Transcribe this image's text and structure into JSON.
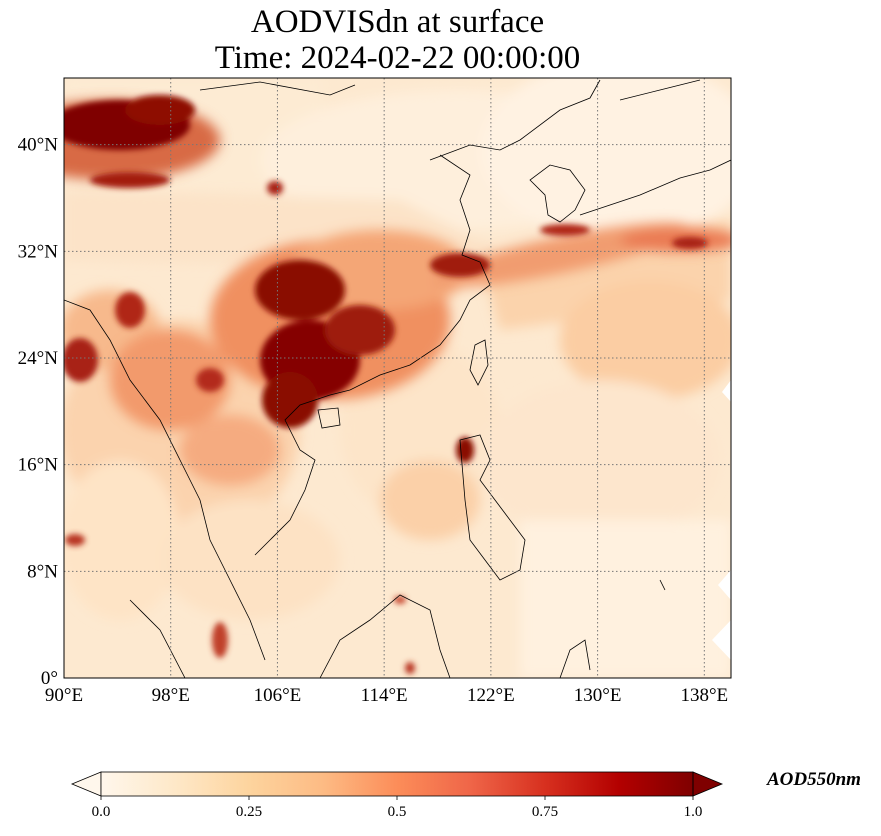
{
  "title": {
    "line1": "AODVISdn at surface",
    "line2": "Time: 2024-02-22 00:00:00"
  },
  "map": {
    "projection": "PlateCarree",
    "lon_range": [
      90,
      140
    ],
    "lat_range": [
      0,
      45
    ],
    "lon_ticks": [
      90,
      98,
      106,
      114,
      122,
      130,
      138
    ],
    "lat_ticks": [
      0,
      8,
      16,
      24,
      32,
      40
    ],
    "lon_tick_labels": [
      "90°E",
      "98°E",
      "106°E",
      "114°E",
      "122°E",
      "130°E",
      "138°E"
    ],
    "lat_tick_labels": [
      "0°",
      "8°N",
      "16°N",
      "24°N",
      "32°N",
      "40°N"
    ],
    "gridlines": "dotted",
    "coastlines": true,
    "borders": true,
    "colormap": "OrRd"
  },
  "colorbar": {
    "label": "AOD550nm",
    "min": 0.0,
    "max": 1.0,
    "ticks": [
      0.0,
      0.25,
      0.5,
      0.75,
      1.0
    ],
    "tick_labels": [
      "0.0",
      "0.25",
      "0.5",
      "0.75",
      "1.0"
    ],
    "extend": "both",
    "orientation": "horizontal",
    "colors": [
      "#fff7ec",
      "#fee8c8",
      "#fdd49e",
      "#fdbb84",
      "#fc8d59",
      "#ef6548",
      "#d7301f",
      "#b30000",
      "#7f0000"
    ]
  }
}
